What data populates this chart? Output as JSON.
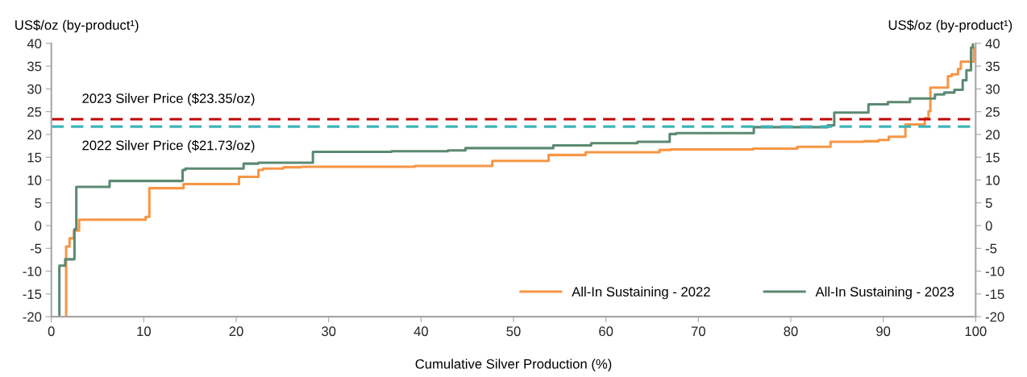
{
  "chart_data": {
    "type": "step",
    "xlabel": "Cumulative Silver Production (%)",
    "ylabel": "US$/oz (by-product¹)",
    "y2label": "US$/oz (by-product¹)",
    "xlim": [
      0,
      100
    ],
    "xticks": [
      0,
      10,
      20,
      30,
      40,
      50,
      60,
      70,
      80,
      90,
      100
    ],
    "ylim": [
      -20,
      40
    ],
    "yticks": [
      -20,
      -15,
      -10,
      -5,
      0,
      5,
      10,
      15,
      20,
      25,
      30,
      35,
      40
    ],
    "y2lim": [
      -20,
      40
    ],
    "y2ticks": [
      -20,
      -15,
      -10,
      -5,
      0,
      5,
      10,
      15,
      20,
      25,
      30,
      35,
      40
    ],
    "grid": false,
    "legend": "bottom right",
    "line_style": "solid",
    "marker": "none",
    "ref_lines": [
      {
        "axis": "y",
        "value": 23.35,
        "label": "2023 Silver Price ($23.35/oz)",
        "color": "#c00000",
        "line_style": "dashed"
      },
      {
        "axis": "y",
        "value": 21.73,
        "label": "2022 Silver Price ($21.73/oz)",
        "color": "#3cb4b9",
        "line_style": "dashed"
      }
    ],
    "series": [
      {
        "name": "All-In Sustaining - 2022",
        "color": "#f79646",
        "x": [
          1.6,
          1.6,
          1.97,
          2.44,
          3.0,
          10.2,
          10.6,
          14.3,
          20.3,
          22.4,
          22.9,
          25.1,
          27.0,
          39.3,
          47.7,
          53.8,
          57.8,
          65.8,
          67.0,
          75.9,
          80.7,
          84.3,
          87.9,
          89.5,
          90.6,
          92.4,
          94.5,
          94.9,
          95.1,
          97.0,
          97.4,
          98.1,
          98.4,
          99.8
        ],
        "values": [
          -20,
          -4.6,
          -2.8,
          -1.1,
          1.3,
          1.9,
          8.2,
          9.1,
          10.7,
          12.2,
          12.5,
          12.8,
          12.9,
          13.1,
          14.2,
          15.5,
          16.1,
          16.6,
          16.7,
          16.9,
          17.3,
          18.4,
          18.5,
          18.8,
          19.5,
          22.2,
          23.6,
          25.1,
          30.3,
          32.8,
          33.2,
          34.4,
          36.0,
          39
        ]
      },
      {
        "name": "All-In Sustaining - 2023",
        "color": "#5b8a72",
        "x": [
          0.87,
          0.87,
          1.5,
          2.5,
          2.7,
          6.3,
          14.2,
          14.5,
          20.8,
          22.4,
          28.3,
          36.8,
          42.9,
          44.8,
          54.3,
          58.4,
          63.4,
          66.9,
          67.6,
          76.0,
          84.0,
          84.7,
          88.4,
          90.5,
          92.9,
          95.6,
          96.6,
          97.7,
          98.6,
          99.0,
          99.5,
          99.7
        ],
        "values": [
          -20,
          -8.8,
          -7.4,
          -0.8,
          8.5,
          9.8,
          12.2,
          12.5,
          13.6,
          13.8,
          16.2,
          16.3,
          16.5,
          17.0,
          17.6,
          18.1,
          18.4,
          20.1,
          20.3,
          21.6,
          22.0,
          24.8,
          26.6,
          27.1,
          27.9,
          28.8,
          29.2,
          29.8,
          31.9,
          34.1,
          39.1,
          40
        ]
      }
    ]
  }
}
